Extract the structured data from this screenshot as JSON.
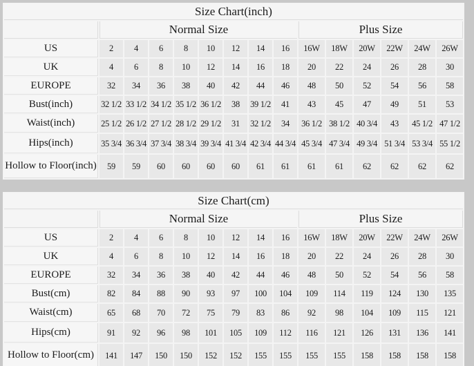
{
  "colors": {
    "page_background": "#c8c8c8",
    "table_surface": "#f4f4f4",
    "header_cell": "#f5f5f5",
    "label_cell": "#f6f6f6",
    "data_cell": "#e8e8e8",
    "grid_line": "#dcdcdc",
    "text": "#1b1b1b"
  },
  "chart_data": [
    {
      "type": "table",
      "title": "Size Chart(inch)",
      "column_groups": [
        {
          "label": "Normal Size",
          "span": 8
        },
        {
          "label": "Plus Size",
          "span": 6
        }
      ],
      "rows": [
        {
          "label": "US",
          "values": [
            "2",
            "4",
            "6",
            "8",
            "10",
            "12",
            "14",
            "16",
            "16W",
            "18W",
            "20W",
            "22W",
            "24W",
            "26W"
          ]
        },
        {
          "label": "UK",
          "values": [
            "4",
            "6",
            "8",
            "10",
            "12",
            "14",
            "16",
            "18",
            "20",
            "22",
            "24",
            "26",
            "28",
            "30"
          ]
        },
        {
          "label": "EUROPE",
          "values": [
            "32",
            "34",
            "36",
            "38",
            "40",
            "42",
            "44",
            "46",
            "48",
            "50",
            "52",
            "54",
            "56",
            "58"
          ]
        },
        {
          "label": "Bust(inch)",
          "values": [
            "32 1/2",
            "33 1/2",
            "34 1/2",
            "35 1/2",
            "36 1/2",
            "38",
            "39 1/2",
            "41",
            "43",
            "45",
            "47",
            "49",
            "51",
            "53"
          ]
        },
        {
          "label": "Waist(inch)",
          "values": [
            "25 1/2",
            "26 1/2",
            "27 1/2",
            "28 1/2",
            "29 1/2",
            "31",
            "32 1/2",
            "34",
            "36 1/2",
            "38 1/2",
            "40 3/4",
            "43",
            "45 1/2",
            "47 1/2"
          ]
        },
        {
          "label": "Hips(inch)",
          "values": [
            "35 3/4",
            "36 3/4",
            "37 3/4",
            "38 3/4",
            "39 3/4",
            "41 3/4",
            "42 3/4",
            "44 3/4",
            "45 3/4",
            "47 3/4",
            "49 3/4",
            "51 3/4",
            "53 3/4",
            "55 1/2"
          ]
        },
        {
          "label": "Hollow to Floor(inch)",
          "values": [
            "59",
            "59",
            "60",
            "60",
            "60",
            "60",
            "61",
            "61",
            "61",
            "61",
            "62",
            "62",
            "62",
            "62"
          ]
        }
      ]
    },
    {
      "type": "table",
      "title": "Size Chart(cm)",
      "column_groups": [
        {
          "label": "Normal Size",
          "span": 8
        },
        {
          "label": "Plus Size",
          "span": 6
        }
      ],
      "rows": [
        {
          "label": "US",
          "values": [
            "2",
            "4",
            "6",
            "8",
            "10",
            "12",
            "14",
            "16",
            "16W",
            "18W",
            "20W",
            "22W",
            "24W",
            "26W"
          ]
        },
        {
          "label": "UK",
          "values": [
            "4",
            "6",
            "8",
            "10",
            "12",
            "14",
            "16",
            "18",
            "20",
            "22",
            "24",
            "26",
            "28",
            "30"
          ]
        },
        {
          "label": "EUROPE",
          "values": [
            "32",
            "34",
            "36",
            "38",
            "40",
            "42",
            "44",
            "46",
            "48",
            "50",
            "52",
            "54",
            "56",
            "58"
          ]
        },
        {
          "label": "Bust(cm)",
          "values": [
            "82",
            "84",
            "88",
            "90",
            "93",
            "97",
            "100",
            "104",
            "109",
            "114",
            "119",
            "124",
            "130",
            "135"
          ]
        },
        {
          "label": "Waist(cm)",
          "values": [
            "65",
            "68",
            "70",
            "72",
            "75",
            "79",
            "83",
            "86",
            "92",
            "98",
            "104",
            "109",
            "115",
            "121"
          ]
        },
        {
          "label": "Hips(cm)",
          "values": [
            "91",
            "92",
            "96",
            "98",
            "101",
            "105",
            "109",
            "112",
            "116",
            "121",
            "126",
            "131",
            "136",
            "141"
          ]
        },
        {
          "label": "Hollow to Floor(cm)",
          "values": [
            "141",
            "147",
            "150",
            "150",
            "152",
            "152",
            "155",
            "155",
            "155",
            "155",
            "158",
            "158",
            "158",
            "158"
          ]
        }
      ]
    }
  ]
}
